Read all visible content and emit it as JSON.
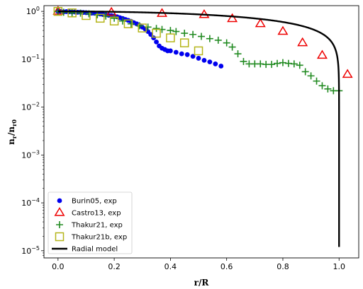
{
  "chart_data": {
    "type": "scatter",
    "xlabel": "r/R",
    "ylabel_main": "n",
    "ylabel_sub1": "r",
    "ylabel_sub2": "r0",
    "yscale": "log",
    "xlim": [
      -0.05,
      1.07
    ],
    "ylim_exp": [
      -5.15,
      0.12
    ],
    "x_ticks": [
      {
        "v": 0.0,
        "label": "0.0"
      },
      {
        "v": 0.2,
        "label": "0.2"
      },
      {
        "v": 0.4,
        "label": "0.4"
      },
      {
        "v": 0.6,
        "label": "0.6"
      },
      {
        "v": 0.8,
        "label": "0.8"
      },
      {
        "v": 1.0,
        "label": "1.0"
      }
    ],
    "y_ticks": [
      {
        "exp": 0,
        "base": "10",
        "sup": "0"
      },
      {
        "exp": -1,
        "base": "10",
        "sup": "−1"
      },
      {
        "exp": -2,
        "base": "10",
        "sup": "−2"
      },
      {
        "exp": -3,
        "base": "10",
        "sup": "−3"
      },
      {
        "exp": -4,
        "base": "10",
        "sup": "−4"
      },
      {
        "exp": -5,
        "base": "10",
        "sup": "−5"
      }
    ],
    "legend_position": "lower-left",
    "series": [
      {
        "name": "Burin05, exp",
        "marker": "circle",
        "color": "#0000ee",
        "points": [
          [
            0.0,
            1.0
          ],
          [
            0.01,
            1.0
          ],
          [
            0.02,
            0.98
          ],
          [
            0.03,
            0.99
          ],
          [
            0.04,
            0.98
          ],
          [
            0.05,
            0.97
          ],
          [
            0.06,
            0.97
          ],
          [
            0.07,
            0.96
          ],
          [
            0.08,
            0.96
          ],
          [
            0.09,
            0.95
          ],
          [
            0.1,
            0.94
          ],
          [
            0.11,
            0.93
          ],
          [
            0.12,
            0.92
          ],
          [
            0.13,
            0.91
          ],
          [
            0.14,
            0.9
          ],
          [
            0.15,
            0.88
          ],
          [
            0.16,
            0.86
          ],
          [
            0.17,
            0.85
          ],
          [
            0.18,
            0.83
          ],
          [
            0.19,
            0.82
          ],
          [
            0.2,
            0.8
          ],
          [
            0.21,
            0.77
          ],
          [
            0.22,
            0.74
          ],
          [
            0.23,
            0.71
          ],
          [
            0.24,
            0.68
          ],
          [
            0.25,
            0.65
          ],
          [
            0.26,
            0.62
          ],
          [
            0.27,
            0.58
          ],
          [
            0.28,
            0.55
          ],
          [
            0.29,
            0.51
          ],
          [
            0.3,
            0.47
          ],
          [
            0.31,
            0.43
          ],
          [
            0.32,
            0.38
          ],
          [
            0.33,
            0.33
          ],
          [
            0.34,
            0.28
          ],
          [
            0.35,
            0.23
          ],
          [
            0.36,
            0.19
          ],
          [
            0.37,
            0.17
          ],
          [
            0.38,
            0.16
          ],
          [
            0.39,
            0.15
          ],
          [
            0.4,
            0.15
          ],
          [
            0.42,
            0.14
          ],
          [
            0.44,
            0.13
          ],
          [
            0.46,
            0.125
          ],
          [
            0.48,
            0.115
          ],
          [
            0.5,
            0.105
          ],
          [
            0.52,
            0.095
          ],
          [
            0.54,
            0.088
          ],
          [
            0.56,
            0.08
          ],
          [
            0.58,
            0.072
          ]
        ]
      },
      {
        "name": "Castro13, exp",
        "marker": "triangle",
        "color": "#ee0000",
        "points": [
          [
            0.0,
            1.0
          ],
          [
            0.19,
            0.95
          ],
          [
            0.37,
            0.9
          ],
          [
            0.52,
            0.85
          ],
          [
            0.62,
            0.7
          ],
          [
            0.72,
            0.55
          ],
          [
            0.8,
            0.38
          ],
          [
            0.87,
            0.22
          ],
          [
            0.94,
            0.12
          ],
          [
            1.03,
            0.048
          ]
        ]
      },
      {
        "name": "Thakur21, exp",
        "marker": "plus",
        "color": "#228b22",
        "points": [
          [
            0.0,
            1.0
          ],
          [
            0.02,
            0.96
          ],
          [
            0.05,
            0.93
          ],
          [
            0.08,
            0.92
          ],
          [
            0.11,
            0.89
          ],
          [
            0.14,
            0.85
          ],
          [
            0.17,
            0.8
          ],
          [
            0.2,
            0.72
          ],
          [
            0.23,
            0.63
          ],
          [
            0.26,
            0.55
          ],
          [
            0.29,
            0.5
          ],
          [
            0.32,
            0.47
          ],
          [
            0.35,
            0.44
          ],
          [
            0.37,
            0.42
          ],
          [
            0.4,
            0.4
          ],
          [
            0.42,
            0.38
          ],
          [
            0.45,
            0.35
          ],
          [
            0.48,
            0.33
          ],
          [
            0.51,
            0.3
          ],
          [
            0.54,
            0.27
          ],
          [
            0.57,
            0.25
          ],
          [
            0.6,
            0.22
          ],
          [
            0.62,
            0.18
          ],
          [
            0.64,
            0.13
          ],
          [
            0.66,
            0.09
          ],
          [
            0.68,
            0.08
          ],
          [
            0.7,
            0.08
          ],
          [
            0.72,
            0.08
          ],
          [
            0.74,
            0.078
          ],
          [
            0.76,
            0.078
          ],
          [
            0.78,
            0.082
          ],
          [
            0.8,
            0.085
          ],
          [
            0.82,
            0.082
          ],
          [
            0.84,
            0.08
          ],
          [
            0.86,
            0.075
          ],
          [
            0.88,
            0.055
          ],
          [
            0.9,
            0.045
          ],
          [
            0.92,
            0.035
          ],
          [
            0.94,
            0.028
          ],
          [
            0.96,
            0.024
          ],
          [
            0.98,
            0.022
          ],
          [
            1.0,
            0.022
          ]
        ]
      },
      {
        "name": "Thakur21b, exp",
        "marker": "square",
        "color": "#b5b51a",
        "points": [
          [
            0.0,
            1.0
          ],
          [
            0.05,
            0.93
          ],
          [
            0.1,
            0.82
          ],
          [
            0.15,
            0.72
          ],
          [
            0.2,
            0.63
          ],
          [
            0.25,
            0.55
          ],
          [
            0.3,
            0.45
          ],
          [
            0.35,
            0.35
          ],
          [
            0.4,
            0.28
          ],
          [
            0.45,
            0.22
          ],
          [
            0.5,
            0.15
          ]
        ]
      },
      {
        "name": "Radial model",
        "marker": "line",
        "color": "#000000",
        "model": "sqrt(1-x^2)"
      }
    ]
  }
}
